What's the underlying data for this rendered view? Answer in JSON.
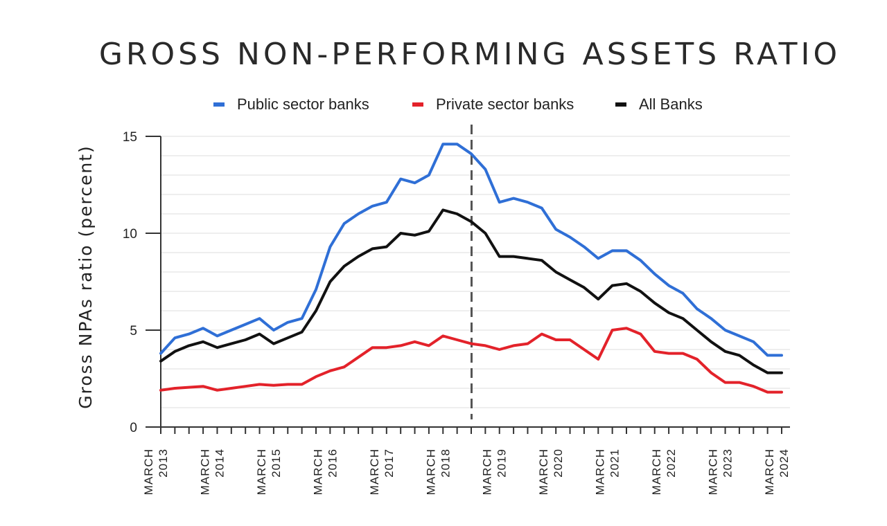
{
  "chart_data": {
    "type": "line",
    "title": "GROSS NON-PERFORMING ASSETS RATIO",
    "ylabel": "Gross NPAs ratio (percent)",
    "xlabel": "",
    "ylim": [
      0,
      15
    ],
    "y_ticks": [
      "0",
      "5",
      "10",
      "15"
    ],
    "grid": true,
    "legend_position": "top",
    "x_tick_labels": [
      {
        "month": "MARCH",
        "year": "2013"
      },
      {
        "month": "MARCH",
        "year": "2014"
      },
      {
        "month": "MARCH",
        "year": "2015"
      },
      {
        "month": "MARCH",
        "year": "2016"
      },
      {
        "month": "MARCH",
        "year": "2017"
      },
      {
        "month": "MARCH",
        "year": "2018"
      },
      {
        "month": "MARCH",
        "year": "2019"
      },
      {
        "month": "MARCH",
        "year": "2020"
      },
      {
        "month": "MARCH",
        "year": "2021"
      },
      {
        "month": "MARCH",
        "year": "2022"
      },
      {
        "month": "MARCH",
        "year": "2023"
      },
      {
        "month": "MARCH",
        "year": "2024"
      }
    ],
    "x": [
      "Mar 2013",
      "Jun 2013",
      "Sep 2013",
      "Dec 2013",
      "Mar 2014",
      "Jun 2014",
      "Sep 2014",
      "Dec 2014",
      "Mar 2015",
      "Jun 2015",
      "Sep 2015",
      "Dec 2015",
      "Mar 2016",
      "Jun 2016",
      "Sep 2016",
      "Dec 2016",
      "Mar 2017",
      "Jun 2017",
      "Sep 2017",
      "Dec 2017",
      "Mar 2018",
      "Jun 2018",
      "Sep 2018",
      "Dec 2018",
      "Mar 2019",
      "Jun 2019",
      "Sep 2019",
      "Dec 2019",
      "Mar 2020",
      "Jun 2020",
      "Sep 2020",
      "Dec 2020",
      "Mar 2021",
      "Jun 2021",
      "Sep 2021",
      "Dec 2021",
      "Mar 2022",
      "Jun 2022",
      "Sep 2022",
      "Dec 2022",
      "Mar 2023",
      "Jun 2023",
      "Sep 2023",
      "Dec 2023",
      "Mar 2024"
    ],
    "divider_x": "Sep 2018",
    "series": [
      {
        "name": "Public sector banks",
        "color": "#2f6fd6",
        "values": [
          3.8,
          4.6,
          4.8,
          5.1,
          4.7,
          5.0,
          5.3,
          5.6,
          5.0,
          5.4,
          5.6,
          7.1,
          9.3,
          10.5,
          11.0,
          11.4,
          11.6,
          12.8,
          12.6,
          13.0,
          14.6,
          14.6,
          14.1,
          13.3,
          11.6,
          11.8,
          11.6,
          11.3,
          10.2,
          9.8,
          9.3,
          8.7,
          9.1,
          9.1,
          8.6,
          7.9,
          7.3,
          6.9,
          6.1,
          5.6,
          5.0,
          4.7,
          4.4,
          3.7,
          3.7
        ]
      },
      {
        "name": "Private sector banks",
        "color": "#e3222a",
        "values": [
          1.9,
          2.0,
          2.05,
          2.1,
          1.9,
          2.0,
          2.1,
          2.2,
          2.15,
          2.2,
          2.2,
          2.6,
          2.9,
          3.1,
          3.6,
          4.1,
          4.1,
          4.2,
          4.4,
          4.2,
          4.7,
          4.5,
          4.3,
          4.2,
          4.0,
          4.2,
          4.3,
          4.8,
          4.5,
          4.5,
          4.0,
          3.5,
          5.0,
          5.1,
          4.8,
          3.9,
          3.8,
          3.8,
          3.5,
          2.8,
          2.3,
          2.3,
          2.1,
          1.8,
          1.8
        ]
      },
      {
        "name": "All Banks",
        "color": "#111111",
        "values": [
          3.4,
          3.9,
          4.2,
          4.4,
          4.1,
          4.3,
          4.5,
          4.8,
          4.3,
          4.6,
          4.9,
          6.0,
          7.5,
          8.3,
          8.8,
          9.2,
          9.3,
          10.0,
          9.9,
          10.1,
          11.2,
          11.0,
          10.6,
          10.0,
          8.8,
          8.8,
          8.7,
          8.6,
          8.0,
          7.6,
          7.2,
          6.6,
          7.3,
          7.4,
          7.0,
          6.4,
          5.9,
          5.6,
          5.0,
          4.4,
          3.9,
          3.7,
          3.2,
          2.8,
          2.8
        ]
      }
    ]
  }
}
